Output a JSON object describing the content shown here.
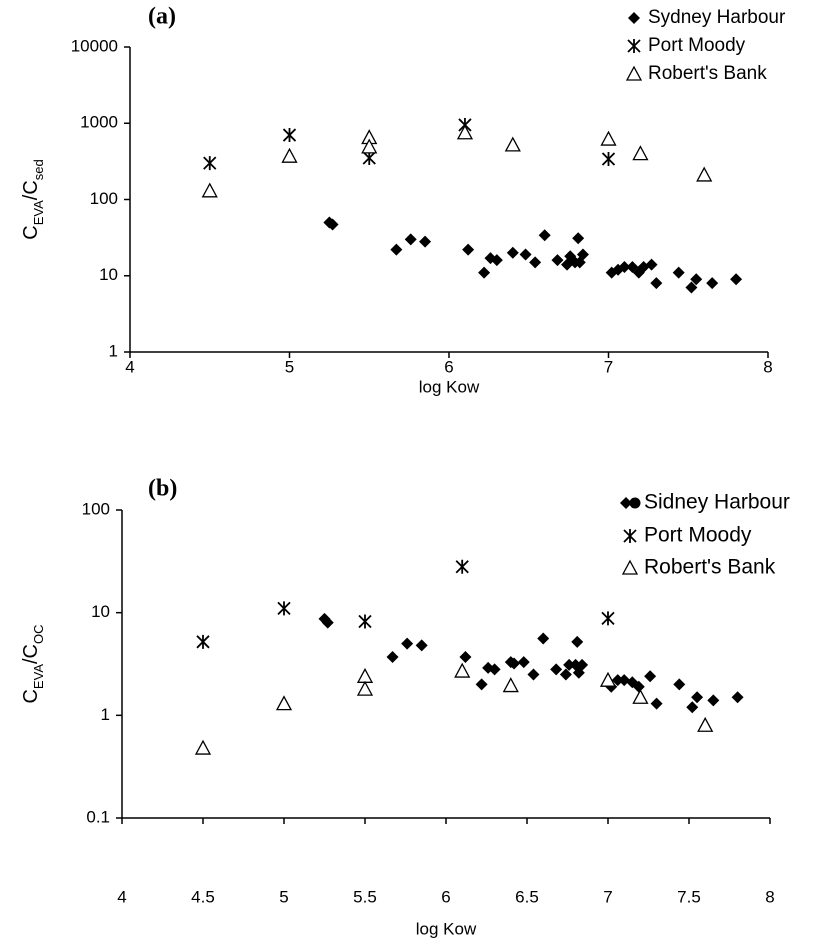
{
  "chart_data": [
    {
      "type": "scatter",
      "title": "(a)",
      "xlabel": "log Kow",
      "ylabel": [
        "C",
        "EVA",
        "/C",
        "sed"
      ],
      "xlim": [
        4,
        8
      ],
      "xticks": [
        4,
        5,
        6,
        7,
        8
      ],
      "ylim": [
        1,
        10000
      ],
      "yticks": [
        1,
        10,
        100,
        1000,
        10000
      ],
      "ylog": true,
      "grid": false,
      "legend": "top-right",
      "series": [
        {
          "name": "Sydney Harbour",
          "marker": "diamond",
          "color": "#000000",
          "x": [
            5.25,
            5.27,
            5.67,
            5.76,
            5.85,
            6.12,
            6.22,
            6.26,
            6.3,
            6.4,
            6.48,
            6.54,
            6.6,
            6.68,
            6.74,
            6.76,
            6.79,
            6.81,
            6.82,
            6.84,
            7.02,
            7.06,
            7.1,
            7.15,
            7.19,
            7.22,
            7.27,
            7.3,
            7.44,
            7.52,
            7.55,
            7.65,
            7.8
          ],
          "values": [
            50,
            47,
            22,
            30,
            28,
            22,
            11,
            17,
            16,
            20,
            19,
            15,
            34,
            16,
            14,
            18,
            15,
            31,
            15,
            19,
            11,
            12,
            13,
            13,
            11,
            13,
            14,
            8,
            11,
            7,
            9,
            8,
            9
          ]
        },
        {
          "name": "Port Moody",
          "marker": "asterisk",
          "color": "#000000",
          "x": [
            4.5,
            5.0,
            5.5,
            6.1,
            7.0
          ],
          "values": [
            300,
            700,
            350,
            950,
            340
          ]
        },
        {
          "name": "Robert's Bank",
          "marker": "triangle",
          "color": "#000000",
          "x": [
            4.5,
            5.0,
            5.5,
            5.5,
            6.1,
            6.4,
            7.0,
            7.2,
            7.6
          ],
          "values": [
            130,
            370,
            650,
            490,
            750,
            520,
            620,
            400,
            210
          ]
        }
      ]
    },
    {
      "type": "scatter",
      "title": "(b)",
      "xlabel": "log Kow",
      "ylabel": [
        "C",
        "EVA",
        "/C",
        "OC"
      ],
      "xlim": [
        4,
        8
      ],
      "xticks": [
        4,
        4.5,
        5,
        5.5,
        6,
        6.5,
        7,
        7.5,
        8
      ],
      "ylim": [
        0.1,
        100
      ],
      "yticks": [
        0.1,
        1,
        10,
        100
      ],
      "ylog": true,
      "grid": false,
      "legend": "top-right",
      "series": [
        {
          "name": "Sidney Harbour",
          "marker": "diamond-circle",
          "color": "#000000",
          "x": [
            5.25,
            5.27,
            5.67,
            5.76,
            5.85,
            6.12,
            6.22,
            6.26,
            6.3,
            6.4,
            6.42,
            6.48,
            6.54,
            6.6,
            6.68,
            6.74,
            6.76,
            6.8,
            6.81,
            6.82,
            6.84,
            7.02,
            7.06,
            7.1,
            7.15,
            7.19,
            7.26,
            7.3,
            7.44,
            7.52,
            7.55,
            7.65,
            7.8
          ],
          "values": [
            8.7,
            8,
            3.7,
            5,
            4.8,
            3.7,
            2,
            2.9,
            2.8,
            3.3,
            3.2,
            3.3,
            2.5,
            5.6,
            2.8,
            2.5,
            3.1,
            3.1,
            5.2,
            2.6,
            3.1,
            1.9,
            2.2,
            2.2,
            2.1,
            1.9,
            2.4,
            1.3,
            2,
            1.2,
            1.5,
            1.4,
            1.5
          ]
        },
        {
          "name": "Port Moody",
          "marker": "asterisk",
          "color": "#000000",
          "x": [
            4.5,
            5.0,
            5.5,
            6.1,
            7.0
          ],
          "values": [
            5.2,
            11,
            8.2,
            28,
            8.8
          ]
        },
        {
          "name": "Robert's Bank",
          "marker": "triangle",
          "color": "#000000",
          "x": [
            4.5,
            5.0,
            5.5,
            5.5,
            6.1,
            6.4,
            7.0,
            7.2,
            7.6
          ],
          "values": [
            0.48,
            1.3,
            2.4,
            1.8,
            2.7,
            1.95,
            2.2,
            1.5,
            0.8
          ]
        }
      ]
    }
  ]
}
